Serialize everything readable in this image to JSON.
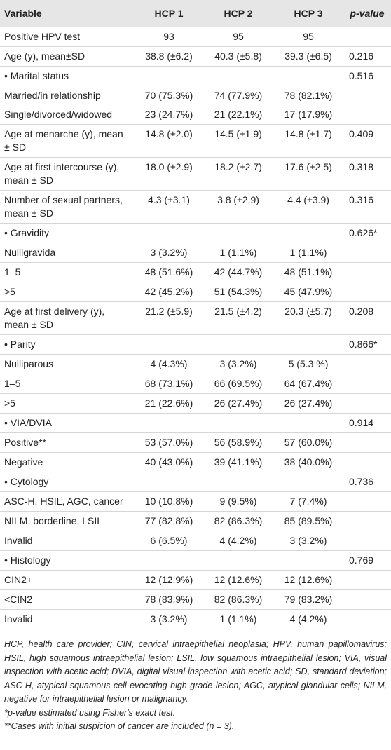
{
  "table": {
    "header": [
      "Variable",
      "HCP 1",
      "HCP 2",
      "HCP 3",
      "p-value"
    ],
    "rows": [
      [
        "Positive HPV test",
        "93",
        "95",
        "95",
        null
      ],
      [
        "Age (y), mean±SD",
        "38.8 (±6.2)",
        "40.3 (±5.8)",
        "39.3 (±6.5)",
        "0.216"
      ],
      [
        "• Marital status",
        null,
        null,
        null,
        "0.516"
      ],
      [
        "Married/in relationship",
        "70 (75.3%)",
        "74 (77.9%)",
        "78 (82.1%)",
        null
      ],
      [
        "Single/divorced/widowed",
        "23 (24.7%)",
        "21 (22.1%)",
        "17 (17.9%)",
        null
      ],
      [
        "Age at menarche (y), mean ± SD",
        "14.8 (±2.0)",
        "14.5 (±1.9)",
        "14.8 (±1.7)",
        "0.409"
      ],
      [
        "Age at first intercourse (y), mean ± SD",
        "18.0 (±2.9)",
        "18.2 (±2.7)",
        "17.6 (±2.5)",
        "0.318"
      ],
      [
        "Number of sexual partners, mean ± SD",
        "4.3 (±3.1)",
        "3.8 (±2.9)",
        "4.4 (±3.9)",
        "0.316"
      ],
      [
        "• Gravidity",
        null,
        null,
        null,
        "0.626*"
      ],
      [
        "Nulligravida",
        "3 (3.2%)",
        "1 (1.1%)",
        "1 (1.1%)",
        null
      ],
      [
        "1–5",
        "48 (51.6%)",
        "42 (44.7%)",
        "48 (51.1%)",
        null
      ],
      [
        ">5",
        "42 (45.2%)",
        "51 (54.3%)",
        "45 (47.9%)",
        null
      ],
      [
        "Age at first delivery (y), mean ± SD",
        "21.2 (±5.9)",
        "21.5 (±4.2)",
        "20.3 (±5.7)",
        "0.208"
      ],
      [
        "• Parity",
        null,
        null,
        null,
        "0.866*"
      ],
      [
        "Nulliparous",
        "4 (4.3%)",
        "3 (3.2%)",
        "5 (5.3 %)",
        null
      ],
      [
        "1–5",
        "68 (73.1%)",
        "66 (69.5%)",
        "64 (67.4%)",
        null
      ],
      [
        ">5",
        "21 (22.6%)",
        "26 (27.4%)",
        "26 (27.4%)",
        null
      ],
      [
        "• VIA/DVIA",
        null,
        null,
        null,
        "0.914"
      ],
      [
        "Positive**",
        "53 (57.0%)",
        "56 (58.9%)",
        "57 (60.0%)",
        null
      ],
      [
        "Negative",
        "40 (43.0%)",
        "39 (41.1%)",
        "38 (40.0%)",
        null
      ],
      [
        "• Cytology",
        null,
        null,
        null,
        "0.736"
      ],
      [
        "ASC-H, HSIL, AGC, cancer",
        "10 (10.8%)",
        "9 (9.5%)",
        "7 (7.4%)",
        null
      ],
      [
        "NILM, borderline, LSIL",
        "77 (82.8%)",
        "82 (86.3%)",
        "85 (89.5%)",
        null
      ],
      [
        "Invalid",
        "6 (6.5%)",
        "4 (4.2%)",
        "3 (3.2%)",
        null
      ],
      [
        "• Histology",
        null,
        null,
        null,
        "0.769"
      ],
      [
        "CIN2+",
        "12 (12.9%)",
        "12 (12.6%)",
        "12 (12.6%)",
        null
      ],
      [
        "<CIN2",
        "78 (83.9%)",
        "82 (86.3%)",
        "79 (83.2%)",
        null
      ],
      [
        "Invalid",
        "3 (3.2%)",
        "1 (1.1%)",
        "4 (4.2%)",
        null
      ]
    ]
  },
  "notes": [
    "HCP, health care provider; CIN, cervical intraepithelial neoplasia; HPV, human papillomavirus; HSIL, high squamous intraepithelial lesion; LSIL, low squamous intraepithelial lesion; VIA, visual inspection with acetic acid; DVIA, digital visual inspection with acetic acid; SD, standard deviation; ASC-H, atypical squamous cell evocating high grade lesion; AGC, atypical glandular cells; NILM, negative for intraepithelial lesion or malignancy.",
    "*p-value estimated using Fisher's exact test.",
    "**Cases with initial suspicion of cancer are included (n = 3)."
  ]
}
